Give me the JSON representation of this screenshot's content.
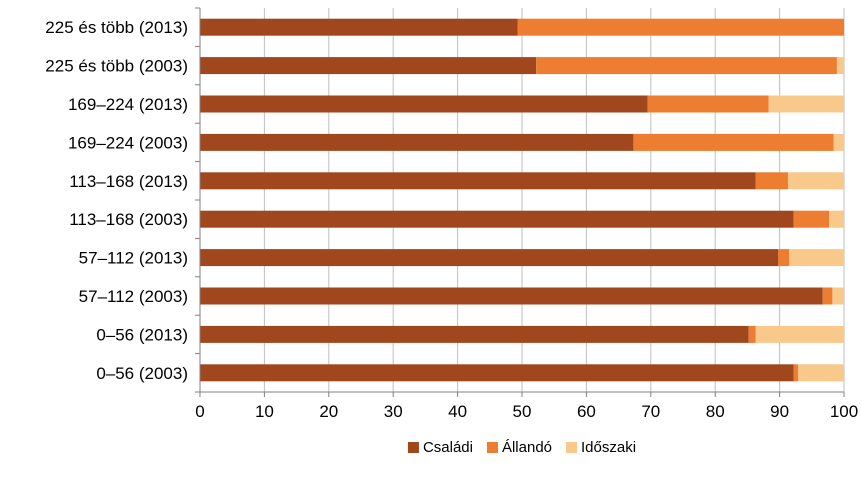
{
  "chart_data": {
    "type": "bar",
    "orientation": "horizontal",
    "stacked": true,
    "categories": [
      "225 és több (2013)",
      "225 és több (2003)",
      "169–224 (2013)",
      "169–224 (2003)",
      "113–168 (2013)",
      "113–168 (2003)",
      "57–112 (2013)",
      "57–112 (2003)",
      "0–56 (2013)",
      "0–56 (2003)"
    ],
    "series": [
      {
        "name": "Családi",
        "color": "#A0471E",
        "values": [
          49.3,
          52.2,
          69.5,
          67.3,
          86.3,
          92.2,
          89.8,
          96.7,
          85.2,
          92.2
        ]
      },
      {
        "name": "Állandó",
        "color": "#ED7D31",
        "values": [
          50.7,
          46.7,
          18.8,
          31.1,
          5.0,
          5.5,
          1.7,
          1.5,
          1.1,
          0.7
        ]
      },
      {
        "name": "Időszaki",
        "color": "#F9C98C",
        "values": [
          0.0,
          1.1,
          11.7,
          1.6,
          8.7,
          2.3,
          8.5,
          1.8,
          13.7,
          7.1
        ]
      }
    ],
    "xlim": [
      0,
      100
    ],
    "xticks": [
      0,
      10,
      20,
      30,
      40,
      50,
      60,
      70,
      80,
      90,
      100
    ],
    "title": "",
    "xlabel": "",
    "ylabel": "",
    "grid": "vertical",
    "legend": "bottom-center"
  }
}
